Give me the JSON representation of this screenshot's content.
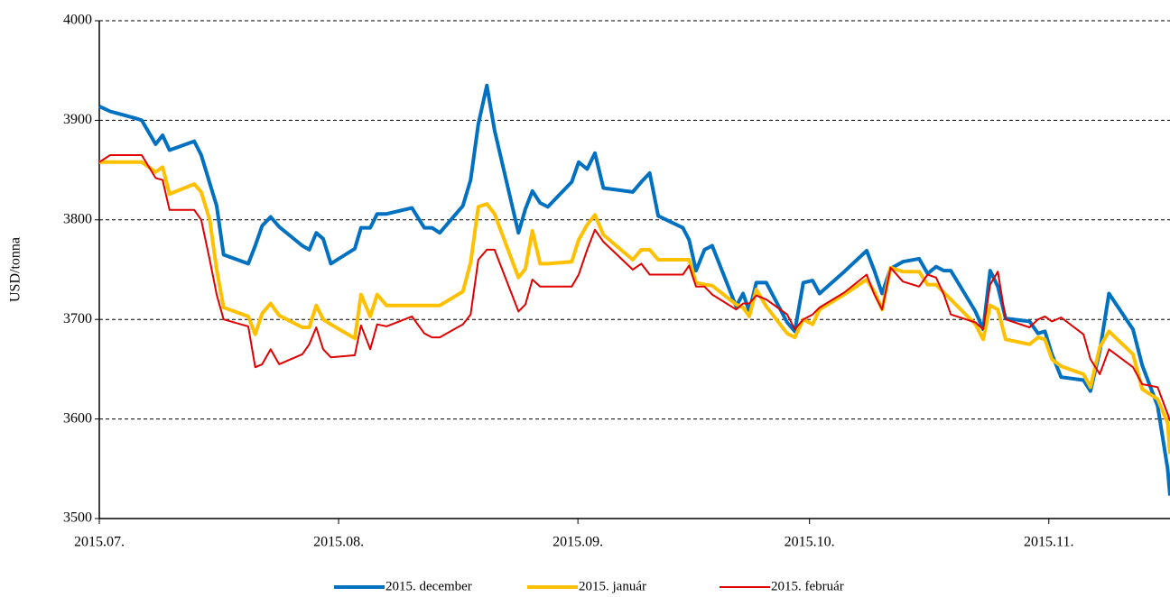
{
  "chart_data": {
    "type": "line",
    "ylabel": "USD/tonna",
    "x": [
      0,
      1.4,
      4.7,
      5.5,
      7.3,
      8.2,
      9.1,
      12.3,
      13.2,
      14.3,
      15.2,
      16.1,
      19.3,
      20.2,
      21.1,
      22.2,
      23.3,
      26.3,
      27.2,
      28.1,
      29,
      30,
      33.1,
      33.9,
      35.1,
      36,
      37.2,
      40.5,
      42.1,
      43.1,
      44.1,
      47.1,
      48.1,
      49.1,
      50.2,
      51.2,
      54.3,
      55.2,
      56.1,
      57.1,
      58.1,
      61.2,
      62.1,
      63.2,
      64.2,
      65.3,
      69.1,
      70.2,
      71.3,
      72.4,
      75.6,
      76.4,
      77.3,
      78.4,
      79.4,
      82.5,
      83.4,
      84.2,
      85.1,
      86.4,
      89.1,
      90.1,
      91.2,
      92.4,
      93.3,
      96.5,
      99.4,
      100.4,
      101.4,
      102.5,
      104.1,
      106.2,
      107.3,
      108.4,
      109.4,
      110.3,
      113.5,
      114.5,
      115.4,
      116.4,
      117.4,
      120.5,
      121.6,
      122.5,
      123.4,
      124.6,
      127.5,
      128.4,
      129.6,
      130.8,
      133.9,
      135.1,
      137.1,
      138.4,
      138.7
    ],
    "series": [
      {
        "name": "2015. december",
        "color": "#0070c0",
        "width": 4,
        "values": [
          3914,
          3909,
          3902,
          3900,
          3876,
          3885,
          3870,
          3879,
          3865,
          3837,
          3814,
          3765,
          3756,
          3774,
          3794,
          3803,
          3793,
          3774,
          3770,
          3787,
          3781,
          3756,
          3771,
          3792,
          3792,
          3806,
          3806,
          3812,
          3792,
          3792,
          3787,
          3814,
          3840,
          3896,
          3935,
          3890,
          3787,
          3811,
          3829,
          3817,
          3813,
          3838,
          3858,
          3851,
          3867,
          3832,
          3828,
          3838,
          3847,
          3804,
          3792,
          3780,
          3749,
          3770,
          3774,
          3713,
          3726,
          3708,
          3737,
          3737,
          3697,
          3688,
          3737,
          3739,
          3726,
          3748,
          3769,
          3749,
          3726,
          3751,
          3758,
          3761,
          3746,
          3753,
          3749,
          3749,
          3708,
          3690,
          3749,
          3733,
          3701,
          3698,
          3686,
          3688,
          3665,
          3642,
          3639,
          3628,
          3668,
          3726,
          3690,
          3654,
          3613,
          3550,
          3523
        ]
      },
      {
        "name": "2015. január",
        "color": "#ffc000",
        "width": 4,
        "values": [
          3858,
          3858,
          3858,
          3858,
          3848,
          3853,
          3826,
          3836,
          3828,
          3800,
          3750,
          3712,
          3703,
          3685,
          3706,
          3716,
          3704,
          3692,
          3692,
          3714,
          3700,
          3695,
          3681,
          3725,
          3703,
          3725,
          3714,
          3714,
          3714,
          3714,
          3714,
          3728,
          3757,
          3813,
          3816,
          3806,
          3742,
          3751,
          3789,
          3756,
          3756,
          3758,
          3780,
          3795,
          3805,
          3785,
          3760,
          3770,
          3770,
          3760,
          3760,
          3760,
          3737,
          3735,
          3734,
          3715,
          3712,
          3703,
          3730,
          3713,
          3686,
          3682,
          3700,
          3695,
          3710,
          3725,
          3740,
          3728,
          3710,
          3752,
          3748,
          3748,
          3735,
          3735,
          3727,
          3720,
          3695,
          3680,
          3714,
          3710,
          3680,
          3675,
          3682,
          3680,
          3660,
          3653,
          3645,
          3632,
          3672,
          3688,
          3665,
          3630,
          3620,
          3596,
          3565
        ]
      },
      {
        "name": "2015. február",
        "color": "#e00000",
        "width": 2,
        "values": [
          3858,
          3865,
          3865,
          3865,
          3842,
          3840,
          3810,
          3810,
          3800,
          3760,
          3725,
          3700,
          3693,
          3652,
          3655,
          3670,
          3655,
          3665,
          3675,
          3692,
          3670,
          3662,
          3664,
          3694,
          3670,
          3695,
          3693,
          3703,
          3686,
          3682,
          3682,
          3695,
          3705,
          3760,
          3770,
          3770,
          3708,
          3715,
          3740,
          3733,
          3733,
          3733,
          3745,
          3770,
          3790,
          3778,
          3750,
          3756,
          3745,
          3745,
          3745,
          3754,
          3733,
          3733,
          3725,
          3710,
          3716,
          3716,
          3724,
          3720,
          3705,
          3690,
          3700,
          3705,
          3712,
          3727,
          3745,
          3725,
          3710,
          3752,
          3738,
          3733,
          3745,
          3742,
          3725,
          3705,
          3697,
          3690,
          3735,
          3748,
          3700,
          3692,
          3700,
          3703,
          3698,
          3702,
          3685,
          3660,
          3645,
          3670,
          3652,
          3635,
          3632,
          3605,
          3598
        ]
      }
    ],
    "xlim": [
      0,
      138.7
    ],
    "xticks": [
      {
        "value": 0,
        "label": "2015.07."
      },
      {
        "value": 31,
        "label": "2015.08."
      },
      {
        "value": 62,
        "label": "2015.09."
      },
      {
        "value": 92,
        "label": "2015.10."
      },
      {
        "value": 123,
        "label": "2015.11."
      }
    ],
    "ylim": [
      3500,
      4000
    ],
    "yticks": [
      3500,
      3600,
      3700,
      3800,
      3900,
      4000
    ],
    "grid": true,
    "legend": "bottom"
  }
}
